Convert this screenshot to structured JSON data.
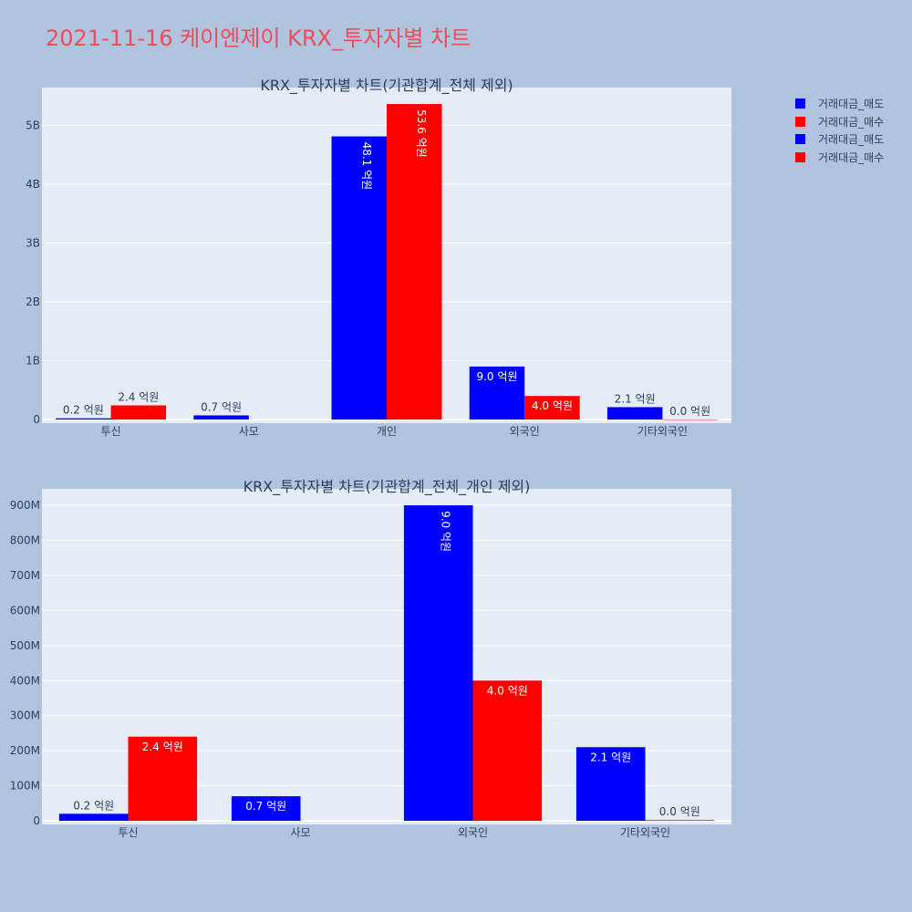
{
  "page_title": "2021-11-16 케이엔제이 KRX_투자자별 차트",
  "legend": [
    {
      "label": "거래대금_매도",
      "color": "#0000ff"
    },
    {
      "label": "거래대금_매수",
      "color": "#ff0000"
    },
    {
      "label": "거래대금_매도",
      "color": "#0000ff"
    },
    {
      "label": "거래대금_매수",
      "color": "#ff0000"
    }
  ],
  "colors": {
    "sell": "#0000ff",
    "buy": "#ff0000",
    "background": "#b0c4de",
    "plot_bg": "#e5ecf6"
  },
  "chart_data": [
    {
      "type": "bar",
      "title": "KRX_투자자별 차트(기관합계_전체 제외)",
      "categories": [
        "투신",
        "사모",
        "개인",
        "외국인",
        "기타외국인"
      ],
      "series": [
        {
          "name": "거래대금_매도",
          "color": "#0000ff",
          "values": [
            20000000,
            70000000,
            4810000000,
            900000000,
            210000000
          ],
          "labels": [
            "0.2 억원",
            "0.7 억원",
            "48.1 억원",
            "9.0 억원",
            "2.1 억원"
          ]
        },
        {
          "name": "거래대금_매수",
          "color": "#ff0000",
          "values": [
            240000000,
            0,
            5360000000,
            400000000,
            2000000
          ],
          "labels": [
            "2.4 억원",
            "",
            "53.6 억원",
            "4.0 억원",
            "0.0 억원"
          ]
        }
      ],
      "yticks": [
        0,
        1000000000,
        2000000000,
        3000000000,
        4000000000,
        5000000000
      ],
      "ytick_labels": [
        "0",
        "1B",
        "2B",
        "3B",
        "4B",
        "5B"
      ],
      "ylim": [
        0,
        5640000000
      ],
      "grid": true
    },
    {
      "type": "bar",
      "title": "KRX_투자자별 차트(기관합계_전체_개인 제외)",
      "categories": [
        "투신",
        "사모",
        "외국인",
        "기타외국인"
      ],
      "series": [
        {
          "name": "거래대금_매도",
          "color": "#0000ff",
          "values": [
            20000000,
            70000000,
            900000000,
            210000000
          ],
          "labels": [
            "0.2 억원",
            "0.7 억원",
            "9.0 억원",
            "2.1 억원"
          ]
        },
        {
          "name": "거래대금_매수",
          "color": "#ff0000",
          "values": [
            240000000,
            0,
            400000000,
            2000000
          ],
          "labels": [
            "2.4 억원",
            "",
            "4.0 억원",
            "0.0 억원"
          ]
        }
      ],
      "yticks": [
        0,
        100000000,
        200000000,
        300000000,
        400000000,
        500000000,
        600000000,
        700000000,
        800000000,
        900000000
      ],
      "ytick_labels": [
        "0",
        "100M",
        "200M",
        "300M",
        "400M",
        "500M",
        "600M",
        "700M",
        "800M",
        "900M"
      ],
      "ylim": [
        0,
        947000000
      ],
      "grid": true
    }
  ]
}
